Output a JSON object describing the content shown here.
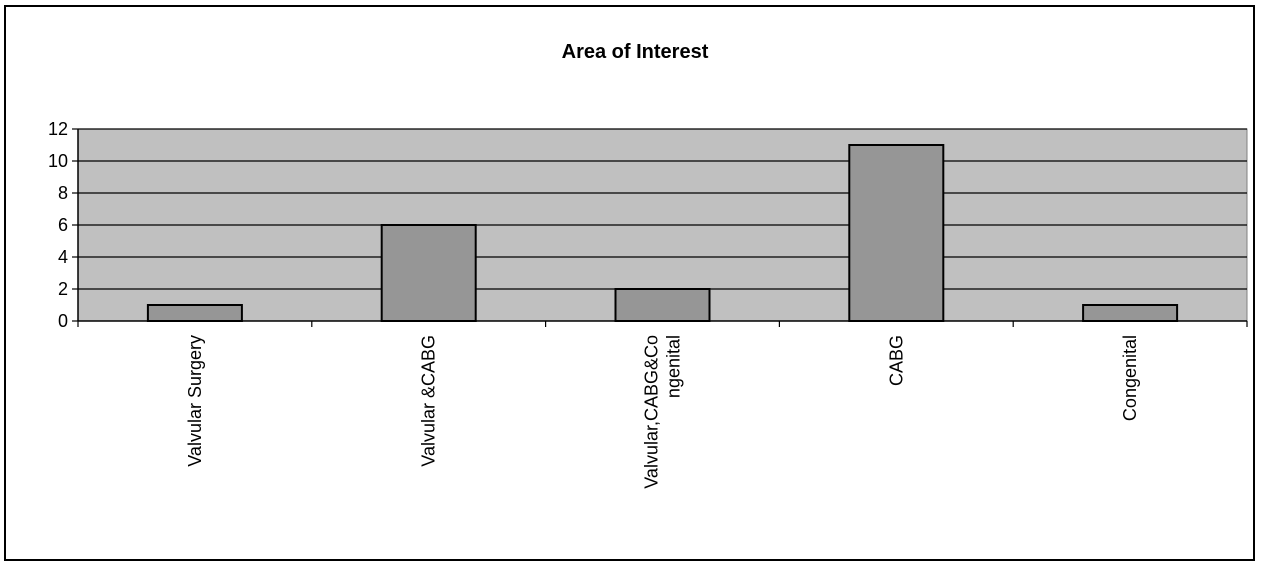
{
  "chart_data": {
    "type": "bar",
    "title": "Area of Interest",
    "xlabel": "",
    "ylabel": "",
    "categories": [
      [
        "Valvular Surgery"
      ],
      [
        "Valvular &CABG"
      ],
      [
        "Valvular,CABG&Co",
        "ngenital"
      ],
      [
        "CABG"
      ],
      [
        "Congenital"
      ]
    ],
    "values": [
      1,
      6,
      2,
      11,
      1
    ],
    "ylim": [
      0,
      12
    ],
    "yticks": [
      0,
      2,
      4,
      6,
      8,
      10,
      12
    ],
    "grid": true,
    "legend": "none",
    "colors": {
      "plot_background": "#c0c0c0",
      "bar_fill": "#969696",
      "bar_stroke": "#000000",
      "gridline": "#000000"
    }
  }
}
